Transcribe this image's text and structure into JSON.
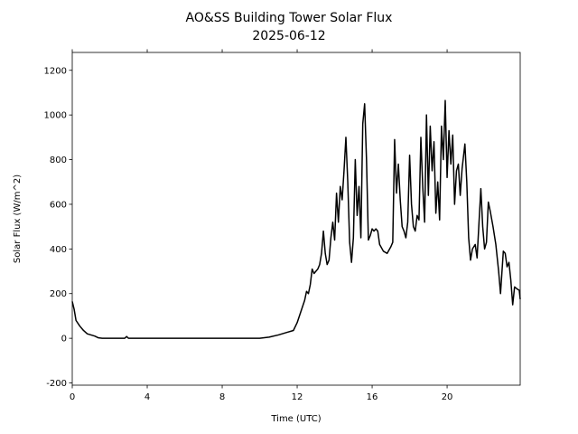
{
  "chart_data": {
    "type": "line",
    "title": "AO&SS Building Tower Solar Flux",
    "subtitle": "2025-06-12",
    "xlabel": "Time (UTC)",
    "ylabel": "Solar Flux (W/m^2)",
    "xlim": [
      0,
      23.9
    ],
    "ylim": [
      -210,
      1280
    ],
    "xticks": [
      0,
      4,
      8,
      12,
      16,
      20
    ],
    "yticks": [
      -200,
      0,
      200,
      400,
      600,
      800,
      1000,
      1200
    ],
    "grid": false,
    "series": [
      {
        "name": "Solar Flux",
        "color": "#000000",
        "x": [
          0,
          0.1,
          0.2,
          0.4,
          0.6,
          0.8,
          1.0,
          1.2,
          1.4,
          1.6,
          2.8,
          2.9,
          3.0,
          6,
          10,
          10.5,
          11,
          11.4,
          11.8,
          12.0,
          12.2,
          12.4,
          12.5,
          12.6,
          12.7,
          12.8,
          12.9,
          13.0,
          13.1,
          13.2,
          13.3,
          13.4,
          13.5,
          13.6,
          13.7,
          13.8,
          13.9,
          14.0,
          14.1,
          14.2,
          14.3,
          14.4,
          14.5,
          14.6,
          14.7,
          14.8,
          14.9,
          15.0,
          15.1,
          15.2,
          15.3,
          15.4,
          15.5,
          15.6,
          15.7,
          15.8,
          15.9,
          16.0,
          16.1,
          16.2,
          16.3,
          16.4,
          16.6,
          16.8,
          17.0,
          17.1,
          17.2,
          17.3,
          17.4,
          17.5,
          17.6,
          17.7,
          17.8,
          17.9,
          18.0,
          18.1,
          18.2,
          18.3,
          18.4,
          18.5,
          18.6,
          18.7,
          18.8,
          18.9,
          19.0,
          19.1,
          19.2,
          19.3,
          19.4,
          19.5,
          19.6,
          19.7,
          19.8,
          19.9,
          20.0,
          20.1,
          20.2,
          20.3,
          20.4,
          20.5,
          20.6,
          20.7,
          20.8,
          20.95,
          21.05,
          21.15,
          21.25,
          21.35,
          21.5,
          21.6,
          21.8,
          21.9,
          22.0,
          22.1,
          22.2,
          22.3,
          22.45,
          22.6,
          22.75,
          22.85,
          23.0,
          23.1,
          23.2,
          23.3,
          23.4,
          23.5,
          23.6,
          23.75,
          23.85,
          23.9
        ],
        "values": [
          165,
          130,
          80,
          55,
          35,
          20,
          15,
          10,
          2,
          0,
          0,
          8,
          0,
          0,
          0,
          5,
          15,
          25,
          35,
          70,
          120,
          170,
          210,
          200,
          240,
          310,
          290,
          300,
          310,
          330,
          380,
          480,
          380,
          330,
          350,
          450,
          520,
          440,
          650,
          520,
          680,
          620,
          750,
          900,
          700,
          430,
          340,
          450,
          800,
          550,
          680,
          450,
          960,
          1050,
          800,
          440,
          460,
          490,
          480,
          490,
          480,
          420,
          390,
          380,
          410,
          430,
          890,
          650,
          780,
          620,
          500,
          480,
          450,
          520,
          820,
          600,
          500,
          480,
          550,
          530,
          900,
          680,
          520,
          1000,
          640,
          950,
          750,
          880,
          560,
          700,
          530,
          950,
          800,
          1065,
          720,
          930,
          780,
          910,
          600,
          750,
          780,
          640,
          760,
          870,
          700,
          450,
          350,
          400,
          420,
          360,
          670,
          500,
          400,
          430,
          610,
          570,
          500,
          420,
          300,
          200,
          390,
          380,
          320,
          340,
          260,
          150,
          230,
          220,
          215,
          175
        ]
      }
    ]
  }
}
